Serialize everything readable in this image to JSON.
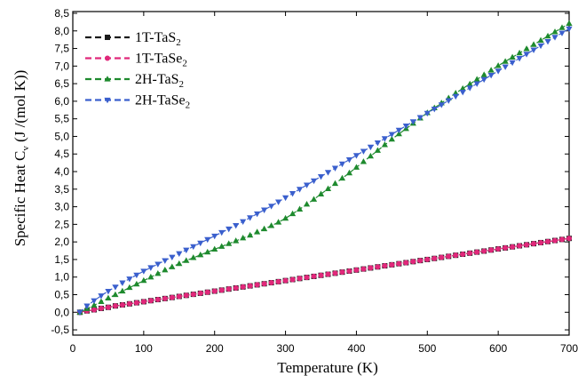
{
  "chart_data": {
    "type": "scatter",
    "xlabel": "Temperature (K)",
    "ylabel": "Specific Heat C",
    "ylabel_sub": "v",
    "ylabel_unit": " (J /(mol K))",
    "xlim": [
      0,
      700
    ],
    "ylim": [
      -0.65,
      8.55
    ],
    "xticks": [
      "0",
      "100",
      "200",
      "300",
      "400",
      "500",
      "600",
      "700"
    ],
    "yticks": [
      "-0,5",
      "0,0",
      "0,5",
      "1,0",
      "1,5",
      "2,0",
      "2,5",
      "3,0",
      "3,5",
      "4,0",
      "4,5",
      "5,0",
      "5,5",
      "6,0",
      "6,5",
      "7,0",
      "7,5",
      "8,0",
      "8,5"
    ],
    "grid": false,
    "legend_position": "top-left",
    "series": [
      {
        "name": "1T-TaS",
        "name_sub": "2",
        "color": "#1a1a1a",
        "marker": "square",
        "x": [
          10,
          20,
          30,
          40,
          50,
          60,
          70,
          80,
          90,
          100,
          110,
          120,
          130,
          140,
          150,
          160,
          170,
          180,
          190,
          200,
          210,
          220,
          230,
          240,
          250,
          260,
          270,
          280,
          290,
          300,
          310,
          320,
          330,
          340,
          350,
          360,
          370,
          380,
          390,
          400,
          410,
          420,
          430,
          440,
          450,
          460,
          470,
          480,
          490,
          500,
          510,
          520,
          530,
          540,
          550,
          560,
          570,
          580,
          590,
          600,
          610,
          620,
          630,
          640,
          650,
          660,
          670,
          680,
          690,
          700
        ],
        "y": [
          0.0,
          0.04,
          0.07,
          0.11,
          0.14,
          0.18,
          0.21,
          0.24,
          0.27,
          0.3,
          0.33,
          0.36,
          0.39,
          0.42,
          0.45,
          0.48,
          0.51,
          0.54,
          0.57,
          0.6,
          0.63,
          0.66,
          0.69,
          0.72,
          0.75,
          0.78,
          0.81,
          0.84,
          0.87,
          0.9,
          0.93,
          0.96,
          0.99,
          1.02,
          1.05,
          1.08,
          1.11,
          1.14,
          1.17,
          1.2,
          1.23,
          1.26,
          1.29,
          1.32,
          1.35,
          1.38,
          1.41,
          1.44,
          1.47,
          1.5,
          1.53,
          1.56,
          1.59,
          1.62,
          1.65,
          1.68,
          1.71,
          1.74,
          1.77,
          1.8,
          1.83,
          1.86,
          1.89,
          1.92,
          1.95,
          1.98,
          2.01,
          2.04,
          2.07,
          2.1
        ]
      },
      {
        "name": "1T-TaSe",
        "name_sub": "2",
        "color": "#e0287a",
        "marker": "circle",
        "x": [
          10,
          20,
          30,
          40,
          50,
          60,
          70,
          80,
          90,
          100,
          110,
          120,
          130,
          140,
          150,
          160,
          170,
          180,
          190,
          200,
          210,
          220,
          230,
          240,
          250,
          260,
          270,
          280,
          290,
          300,
          310,
          320,
          330,
          340,
          350,
          360,
          370,
          380,
          390,
          400,
          410,
          420,
          430,
          440,
          450,
          460,
          470,
          480,
          490,
          500,
          510,
          520,
          530,
          540,
          550,
          560,
          570,
          580,
          590,
          600,
          610,
          620,
          630,
          640,
          650,
          660,
          670,
          680,
          690,
          700
        ],
        "y": [
          0.0,
          0.04,
          0.07,
          0.11,
          0.14,
          0.18,
          0.21,
          0.24,
          0.27,
          0.3,
          0.33,
          0.36,
          0.39,
          0.42,
          0.45,
          0.48,
          0.51,
          0.54,
          0.57,
          0.6,
          0.63,
          0.66,
          0.69,
          0.72,
          0.75,
          0.78,
          0.81,
          0.84,
          0.87,
          0.9,
          0.93,
          0.96,
          0.99,
          1.02,
          1.05,
          1.08,
          1.11,
          1.14,
          1.17,
          1.2,
          1.23,
          1.26,
          1.29,
          1.32,
          1.35,
          1.38,
          1.41,
          1.44,
          1.47,
          1.5,
          1.53,
          1.56,
          1.59,
          1.62,
          1.65,
          1.68,
          1.71,
          1.74,
          1.77,
          1.8,
          1.83,
          1.86,
          1.89,
          1.92,
          1.95,
          1.98,
          2.01,
          2.04,
          2.07,
          2.1
        ]
      },
      {
        "name": "2H-TaS",
        "name_sub": "2",
        "color": "#1e8a2e",
        "marker": "triangle-up",
        "x": [
          10,
          20,
          30,
          40,
          50,
          60,
          70,
          80,
          90,
          100,
          110,
          120,
          130,
          140,
          150,
          160,
          170,
          180,
          190,
          200,
          210,
          220,
          230,
          240,
          250,
          260,
          270,
          280,
          290,
          300,
          310,
          320,
          330,
          340,
          350,
          360,
          370,
          380,
          390,
          400,
          410,
          420,
          430,
          440,
          450,
          460,
          470,
          480,
          490,
          500,
          510,
          520,
          530,
          540,
          550,
          560,
          570,
          580,
          590,
          600,
          610,
          620,
          630,
          640,
          650,
          660,
          670,
          680,
          690,
          700
        ],
        "y": [
          0.0,
          0.1,
          0.2,
          0.3,
          0.4,
          0.5,
          0.6,
          0.7,
          0.8,
          0.9,
          1.0,
          1.1,
          1.2,
          1.29,
          1.38,
          1.47,
          1.55,
          1.63,
          1.71,
          1.79,
          1.87,
          1.95,
          2.03,
          2.11,
          2.19,
          2.28,
          2.37,
          2.46,
          2.56,
          2.67,
          2.8,
          2.93,
          3.07,
          3.21,
          3.36,
          3.51,
          3.66,
          3.81,
          3.96,
          4.12,
          4.28,
          4.44,
          4.6,
          4.76,
          4.92,
          5.07,
          5.22,
          5.37,
          5.52,
          5.67,
          5.81,
          5.95,
          6.09,
          6.23,
          6.36,
          6.49,
          6.62,
          6.75,
          6.88,
          7.01,
          7.13,
          7.25,
          7.37,
          7.49,
          7.61,
          7.73,
          7.85,
          7.97,
          8.09,
          8.21
        ]
      },
      {
        "name": "2H-TaSe",
        "name_sub": "2",
        "color": "#3a5fcd",
        "marker": "triangle-down",
        "x": [
          10,
          20,
          30,
          40,
          50,
          60,
          70,
          80,
          90,
          100,
          110,
          120,
          130,
          140,
          150,
          160,
          170,
          180,
          190,
          200,
          210,
          220,
          230,
          240,
          250,
          260,
          270,
          280,
          290,
          300,
          310,
          320,
          330,
          340,
          350,
          360,
          370,
          380,
          390,
          400,
          410,
          420,
          430,
          440,
          450,
          460,
          470,
          480,
          490,
          500,
          510,
          520,
          530,
          540,
          550,
          560,
          570,
          580,
          590,
          600,
          610,
          620,
          630,
          640,
          650,
          660,
          670,
          680,
          690,
          700
        ],
        "y": [
          0.0,
          0.18,
          0.33,
          0.47,
          0.6,
          0.72,
          0.84,
          0.95,
          1.06,
          1.17,
          1.27,
          1.37,
          1.47,
          1.57,
          1.67,
          1.77,
          1.87,
          1.97,
          2.07,
          2.17,
          2.27,
          2.37,
          2.47,
          2.58,
          2.69,
          2.8,
          2.91,
          3.02,
          3.14,
          3.26,
          3.38,
          3.5,
          3.62,
          3.74,
          3.86,
          3.98,
          4.1,
          4.22,
          4.34,
          4.46,
          4.58,
          4.7,
          4.82,
          4.94,
          5.06,
          5.18,
          5.3,
          5.42,
          5.54,
          5.66,
          5.78,
          5.9,
          6.02,
          6.14,
          6.26,
          6.38,
          6.5,
          6.62,
          6.74,
          6.86,
          6.98,
          7.1,
          7.22,
          7.34,
          7.46,
          7.58,
          7.7,
          7.82,
          7.94,
          8.06
        ]
      }
    ]
  }
}
